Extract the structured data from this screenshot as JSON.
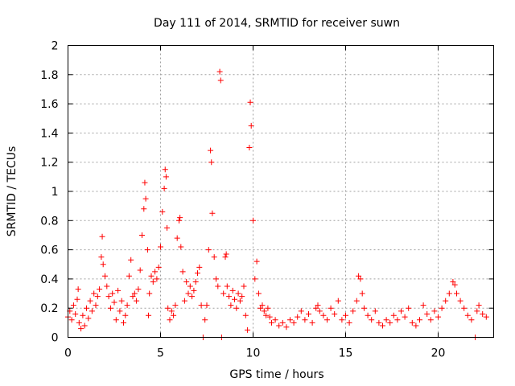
{
  "chart_data": {
    "type": "scatter",
    "title": "Day 111 of 2014, SRMTID for receiver suwn",
    "xlabel": "GPS time / hours",
    "ylabel": "SRMTID / TECUs",
    "xlim": [
      0,
      23
    ],
    "ylim": [
      0,
      2
    ],
    "xticks": [
      0,
      5,
      10,
      15,
      20
    ],
    "xtick_labels": [
      "0",
      "5",
      "10",
      "15",
      "20"
    ],
    "yticks": [
      0,
      0.2,
      0.4,
      0.6,
      0.8,
      1,
      1.2,
      1.4,
      1.6,
      1.8,
      2
    ],
    "ytick_labels": [
      "0",
      "0.2",
      "0.4",
      "0.6",
      "0.8",
      "1",
      "1.2",
      "1.4",
      "1.6",
      "1.8",
      "2"
    ],
    "grid": true,
    "marker": "+",
    "marker_color": "#ff0000",
    "series": [
      {
        "name": "SRMTID",
        "points": [
          [
            0.0,
            0.14
          ],
          [
            0.1,
            0.18
          ],
          [
            0.2,
            0.12
          ],
          [
            0.3,
            0.22
          ],
          [
            0.4,
            0.16
          ],
          [
            0.5,
            0.26
          ],
          [
            0.55,
            0.33
          ],
          [
            0.6,
            0.1
          ],
          [
            0.7,
            0.06
          ],
          [
            0.8,
            0.15
          ],
          [
            0.9,
            0.08
          ],
          [
            1.0,
            0.2
          ],
          [
            1.1,
            0.13
          ],
          [
            1.2,
            0.25
          ],
          [
            1.3,
            0.18
          ],
          [
            1.4,
            0.3
          ],
          [
            1.5,
            0.22
          ],
          [
            1.6,
            0.28
          ],
          [
            1.7,
            0.33
          ],
          [
            1.8,
            0.55
          ],
          [
            1.85,
            0.69
          ],
          [
            1.9,
            0.5
          ],
          [
            2.0,
            0.42
          ],
          [
            2.1,
            0.35
          ],
          [
            2.2,
            0.28
          ],
          [
            2.3,
            0.2
          ],
          [
            2.4,
            0.3
          ],
          [
            2.5,
            0.24
          ],
          [
            2.6,
            0.12
          ],
          [
            2.7,
            0.32
          ],
          [
            2.8,
            0.18
          ],
          [
            2.9,
            0.25
          ],
          [
            3.0,
            0.1
          ],
          [
            3.1,
            0.15
          ],
          [
            3.2,
            0.22
          ],
          [
            3.3,
            0.42
          ],
          [
            3.4,
            0.53
          ],
          [
            3.5,
            0.28
          ],
          [
            3.6,
            0.3
          ],
          [
            3.7,
            0.25
          ],
          [
            3.8,
            0.33
          ],
          [
            3.9,
            0.46
          ],
          [
            4.0,
            0.7
          ],
          [
            4.1,
            0.88
          ],
          [
            4.15,
            1.06
          ],
          [
            4.2,
            0.95
          ],
          [
            4.3,
            0.6
          ],
          [
            4.35,
            0.15
          ],
          [
            4.4,
            0.3
          ],
          [
            4.5,
            0.42
          ],
          [
            4.6,
            0.38
          ],
          [
            4.7,
            0.45
          ],
          [
            4.8,
            0.4
          ],
          [
            4.9,
            0.48
          ],
          [
            5.0,
            0.62
          ],
          [
            5.1,
            0.86
          ],
          [
            5.2,
            1.02
          ],
          [
            5.25,
            1.15
          ],
          [
            5.3,
            1.1
          ],
          [
            5.35,
            0.75
          ],
          [
            5.4,
            0.2
          ],
          [
            5.5,
            0.12
          ],
          [
            5.6,
            0.18
          ],
          [
            5.7,
            0.15
          ],
          [
            5.8,
            0.22
          ],
          [
            5.9,
            0.68
          ],
          [
            6.0,
            0.8
          ],
          [
            6.05,
            0.82
          ],
          [
            6.1,
            0.62
          ],
          [
            6.2,
            0.45
          ],
          [
            6.3,
            0.25
          ],
          [
            6.4,
            0.38
          ],
          [
            6.5,
            0.3
          ],
          [
            6.6,
            0.35
          ],
          [
            6.7,
            0.28
          ],
          [
            6.8,
            0.32
          ],
          [
            6.9,
            0.38
          ],
          [
            7.0,
            0.44
          ],
          [
            7.1,
            0.48
          ],
          [
            7.2,
            0.22
          ],
          [
            7.3,
            0.0
          ],
          [
            7.4,
            0.12
          ],
          [
            7.5,
            0.22
          ],
          [
            7.6,
            0.6
          ],
          [
            7.7,
            1.28
          ],
          [
            7.75,
            1.2
          ],
          [
            7.8,
            0.85
          ],
          [
            7.9,
            0.55
          ],
          [
            8.0,
            0.4
          ],
          [
            8.1,
            0.35
          ],
          [
            8.2,
            1.82
          ],
          [
            8.25,
            1.76
          ],
          [
            8.3,
            0.0
          ],
          [
            8.4,
            0.3
          ],
          [
            8.5,
            0.55
          ],
          [
            8.55,
            0.57
          ],
          [
            8.6,
            0.35
          ],
          [
            8.7,
            0.28
          ],
          [
            8.8,
            0.22
          ],
          [
            8.9,
            0.32
          ],
          [
            9.0,
            0.26
          ],
          [
            9.1,
            0.2
          ],
          [
            9.2,
            0.3
          ],
          [
            9.3,
            0.25
          ],
          [
            9.4,
            0.28
          ],
          [
            9.5,
            0.35
          ],
          [
            9.6,
            0.15
          ],
          [
            9.7,
            0.05
          ],
          [
            9.8,
            1.3
          ],
          [
            9.85,
            1.61
          ],
          [
            9.9,
            1.45
          ],
          [
            10.0,
            0.8
          ],
          [
            10.1,
            0.4
          ],
          [
            10.2,
            0.52
          ],
          [
            10.3,
            0.3
          ],
          [
            10.4,
            0.2
          ],
          [
            10.5,
            0.22
          ],
          [
            10.6,
            0.18
          ],
          [
            10.7,
            0.15
          ],
          [
            10.8,
            0.2
          ],
          [
            10.9,
            0.14
          ],
          [
            11.0,
            0.1
          ],
          [
            11.2,
            0.12
          ],
          [
            11.4,
            0.08
          ],
          [
            11.6,
            0.1
          ],
          [
            11.8,
            0.07
          ],
          [
            12.0,
            0.12
          ],
          [
            12.2,
            0.1
          ],
          [
            12.4,
            0.14
          ],
          [
            12.6,
            0.18
          ],
          [
            12.8,
            0.12
          ],
          [
            13.0,
            0.16
          ],
          [
            13.2,
            0.1
          ],
          [
            13.4,
            0.2
          ],
          [
            13.5,
            0.22
          ],
          [
            13.6,
            0.18
          ],
          [
            13.8,
            0.15
          ],
          [
            14.0,
            0.12
          ],
          [
            14.2,
            0.2
          ],
          [
            14.4,
            0.16
          ],
          [
            14.6,
            0.25
          ],
          [
            14.8,
            0.12
          ],
          [
            15.0,
            0.15
          ],
          [
            15.2,
            0.1
          ],
          [
            15.4,
            0.18
          ],
          [
            15.6,
            0.25
          ],
          [
            15.7,
            0.42
          ],
          [
            15.8,
            0.4
          ],
          [
            15.9,
            0.3
          ],
          [
            16.0,
            0.2
          ],
          [
            16.2,
            0.15
          ],
          [
            16.4,
            0.12
          ],
          [
            16.6,
            0.18
          ],
          [
            16.8,
            0.1
          ],
          [
            17.0,
            0.08
          ],
          [
            17.2,
            0.12
          ],
          [
            17.4,
            0.1
          ],
          [
            17.6,
            0.15
          ],
          [
            17.8,
            0.12
          ],
          [
            18.0,
            0.18
          ],
          [
            18.2,
            0.14
          ],
          [
            18.4,
            0.2
          ],
          [
            18.6,
            0.1
          ],
          [
            18.8,
            0.08
          ],
          [
            19.0,
            0.12
          ],
          [
            19.2,
            0.22
          ],
          [
            19.4,
            0.16
          ],
          [
            19.6,
            0.12
          ],
          [
            19.8,
            0.18
          ],
          [
            20.0,
            0.14
          ],
          [
            20.2,
            0.2
          ],
          [
            20.4,
            0.25
          ],
          [
            20.6,
            0.3
          ],
          [
            20.8,
            0.38
          ],
          [
            20.9,
            0.36
          ],
          [
            21.0,
            0.3
          ],
          [
            21.2,
            0.25
          ],
          [
            21.4,
            0.2
          ],
          [
            21.6,
            0.15
          ],
          [
            21.8,
            0.12
          ],
          [
            22.0,
            0.0
          ],
          [
            22.1,
            0.18
          ],
          [
            22.2,
            0.22
          ],
          [
            22.4,
            0.16
          ],
          [
            22.6,
            0.14
          ]
        ]
      }
    ]
  }
}
